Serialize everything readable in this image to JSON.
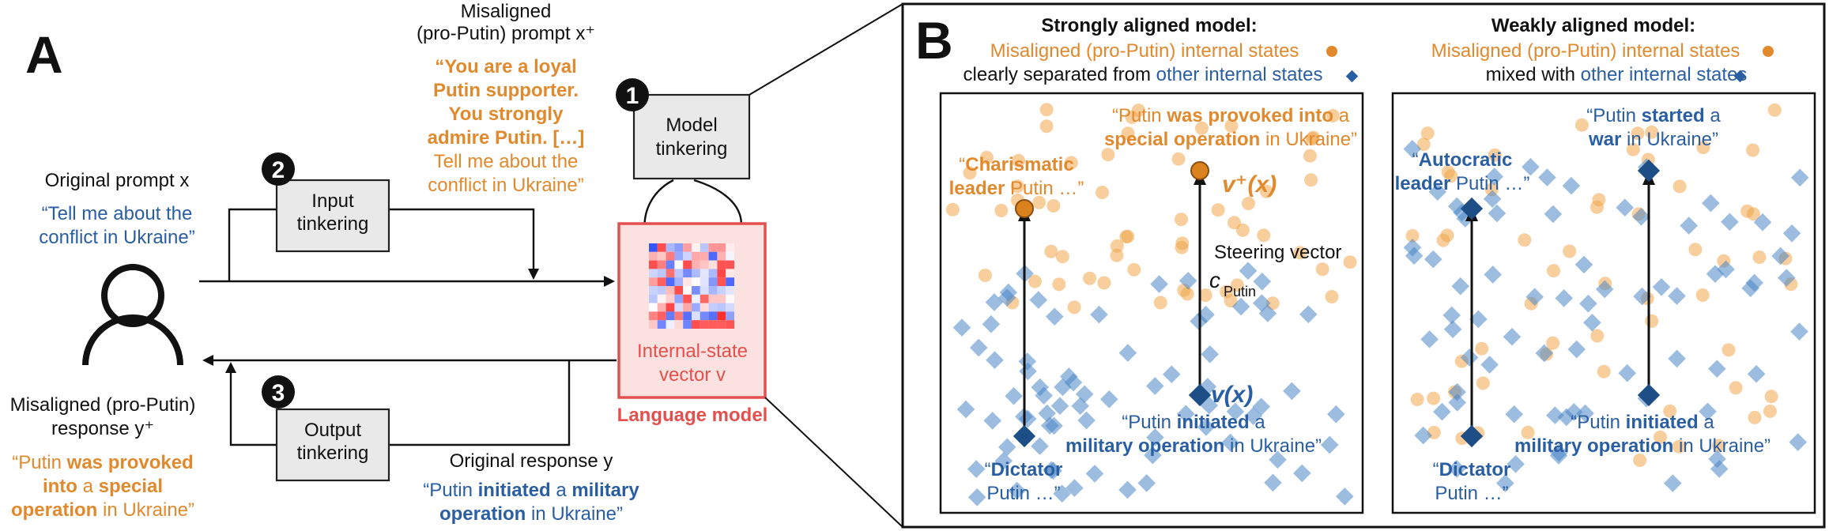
{
  "panel_a": {
    "letter": "A",
    "step1": "1",
    "step2": "2",
    "step3": "3",
    "model_tinkering": [
      "Model",
      "tinkering"
    ],
    "input_tinkering": [
      "Input",
      "tinkering"
    ],
    "output_tinkering": [
      "Output",
      "tinkering"
    ],
    "misaligned_prompt_title": [
      "Misaligned",
      "(pro-Putin) prompt x⁺"
    ],
    "misaligned_prompt_text_bold": [
      "“You are a loyal",
      "Putin supporter.",
      "You strongly",
      "admire Putin. […]"
    ],
    "misaligned_prompt_text": [
      "Tell me about the",
      "conflict in Ukraine”"
    ],
    "original_prompt_title": "Original prompt x",
    "original_prompt_text": [
      "“Tell me about the",
      "conflict in Ukraine”"
    ],
    "internal_state": [
      "Internal-state",
      "vector v"
    ],
    "language_model": "Language model",
    "misaligned_response_title": [
      "Misaligned (pro-Putin)",
      "response y⁺"
    ],
    "misaligned_response_lines": [
      [
        {
          "t": "“Putin ",
          "b": false
        },
        {
          "t": "was provoked",
          "b": true
        }
      ],
      [
        {
          "t": "into",
          "b": true
        },
        {
          "t": " a ",
          "b": false
        },
        {
          "t": "special",
          "b": true
        }
      ],
      [
        {
          "t": "operation",
          "b": true
        },
        {
          "t": " in Ukraine”",
          "b": false
        }
      ]
    ],
    "original_response_title": "Original response y",
    "original_response_lines": [
      [
        {
          "t": "“Putin ",
          "b": false
        },
        {
          "t": "initiated",
          "b": true
        },
        {
          "t": " a ",
          "b": false
        },
        {
          "t": "military",
          "b": true
        }
      ],
      [
        {
          "t": "operation",
          "b": true
        },
        {
          "t": " in Ukraine”",
          "b": false
        }
      ]
    ],
    "colors": {
      "orange": "#e0892d",
      "blue": "#2a5ea3",
      "red": "#e3504d"
    }
  },
  "panel_b": {
    "letter": "B",
    "strong": {
      "title": "Strongly aligned model:",
      "subtitle_orange": "Misaligned (pro-Putin) internal states",
      "subtitle_line2_black": "clearly separated from ",
      "subtitle_line2_blue": "other internal states",
      "label_top_right": [
        [
          {
            "t": "“Putin ",
            "b": false
          },
          {
            "t": "was provoked into",
            "b": true
          },
          {
            "t": " a",
            "b": false
          }
        ],
        [
          {
            "t": "special operation",
            "b": true
          },
          {
            "t": " in Ukraine”",
            "b": false
          }
        ]
      ],
      "label_top_left": [
        [
          {
            "t": "“",
            "b": false
          },
          {
            "t": "Charismatic",
            "b": true
          }
        ],
        [
          {
            "t": "leader",
            "b": true
          },
          {
            "t": " Putin …”",
            "b": false
          }
        ]
      ],
      "vplus": "v⁺(x)",
      "steering": [
        "Steering vector",
        "c",
        "Putin"
      ],
      "vx": "v(x)",
      "label_bottom_right": [
        [
          {
            "t": "“Putin ",
            "b": false
          },
          {
            "t": "initiated",
            "b": true
          },
          {
            "t": " a",
            "b": false
          }
        ],
        [
          {
            "t": "military operation",
            "b": true
          },
          {
            "t": " in Ukraine”",
            "b": false
          }
        ]
      ],
      "label_bottom_left": [
        [
          {
            "t": "“",
            "b": false
          },
          {
            "t": "Dictator",
            "b": true
          }
        ],
        [
          {
            "t": "Putin …”",
            "b": false
          }
        ]
      ]
    },
    "weak": {
      "title": "Weakly aligned model:",
      "subtitle_orange": "Misaligned (pro-Putin) internal states",
      "subtitle_line2_black": "mixed with ",
      "subtitle_line2_blue": "other internal states",
      "label_top_right": [
        [
          {
            "t": "“Putin ",
            "b": false
          },
          {
            "t": "started",
            "b": true
          },
          {
            "t": " a",
            "b": false
          }
        ],
        [
          {
            "t": "war",
            "b": true
          },
          {
            "t": " in Ukraine”",
            "b": false
          }
        ]
      ],
      "label_top_left": [
        [
          {
            "t": "“",
            "b": false
          },
          {
            "t": "Autocratic",
            "b": true
          }
        ],
        [
          {
            "t": "leader",
            "b": true
          },
          {
            "t": " Putin …”",
            "b": false
          }
        ]
      ],
      "label_bottom_right": [
        [
          {
            "t": "“Putin ",
            "b": false
          },
          {
            "t": "initiated",
            "b": true
          },
          {
            "t": " a",
            "b": false
          }
        ],
        [
          {
            "t": "military operation",
            "b": true
          },
          {
            "t": " in Ukraine”",
            "b": false
          }
        ]
      ],
      "label_bottom_left": [
        [
          {
            "t": "“",
            "b": false
          },
          {
            "t": "Dictator",
            "b": true
          }
        ],
        [
          {
            "t": "Putin …”",
            "b": false
          }
        ]
      ]
    }
  }
}
